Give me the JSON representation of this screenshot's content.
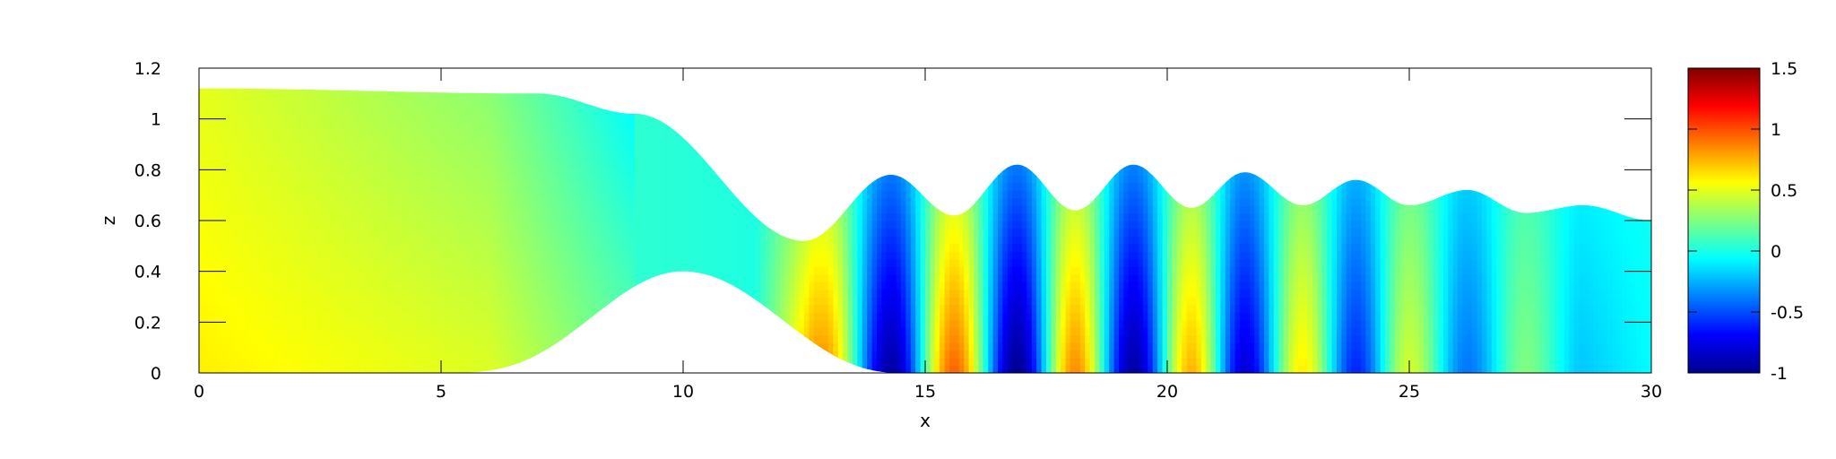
{
  "chart_data": {
    "type": "heatmap",
    "title": "",
    "xlabel": "x",
    "ylabel": "z",
    "xlim": [
      0,
      30
    ],
    "ylim": [
      0,
      1.2
    ],
    "xticks": [
      "0",
      "5",
      "10",
      "15",
      "20",
      "25",
      "30"
    ],
    "yticks": [
      "0",
      "0.2",
      "0.4",
      "0.6",
      "0.8",
      "1",
      "1.2"
    ],
    "colorbar": {
      "range": [
        -1,
        1.5
      ],
      "ticks": [
        "-1",
        "-0.5",
        "0",
        "0.5",
        "1",
        "1.5"
      ],
      "colormap": "jet",
      "placement": "right"
    },
    "bottom_topography": {
      "description_points": [
        [
          0,
          0
        ],
        [
          5,
          0
        ],
        [
          7,
          0.05
        ],
        [
          10,
          0.4
        ],
        [
          13,
          0.1
        ],
        [
          14.5,
          0
        ],
        [
          30,
          0
        ]
      ]
    },
    "free_surface": {
      "upstream_level": 1.12,
      "points": [
        [
          0,
          1.12
        ],
        [
          7,
          1.1
        ],
        [
          9,
          1.02
        ],
        [
          12.5,
          0.52
        ],
        [
          14.3,
          0.78
        ],
        [
          15.6,
          0.62
        ],
        [
          16.9,
          0.82
        ],
        [
          18.1,
          0.64
        ],
        [
          19.3,
          0.82
        ],
        [
          20.5,
          0.65
        ],
        [
          21.6,
          0.79
        ],
        [
          22.8,
          0.66
        ],
        [
          23.9,
          0.76
        ],
        [
          25,
          0.66
        ],
        [
          26.2,
          0.72
        ],
        [
          27.4,
          0.63
        ],
        [
          28.6,
          0.66
        ],
        [
          30,
          0.6
        ]
      ]
    },
    "wave_train": {
      "start_x": 12.5,
      "wavelength": 2.35,
      "peaks": [
        {
          "x": 12.9,
          "value": 0.85
        },
        {
          "x": 14.3,
          "value": -0.95
        },
        {
          "x": 15.6,
          "value": 0.95
        },
        {
          "x": 16.9,
          "value": -1.0
        },
        {
          "x": 18.1,
          "value": 0.85
        },
        {
          "x": 19.3,
          "value": -0.95
        },
        {
          "x": 20.5,
          "value": 0.75
        },
        {
          "x": 21.6,
          "value": -0.8
        },
        {
          "x": 22.8,
          "value": 0.6
        },
        {
          "x": 23.9,
          "value": -0.6
        },
        {
          "x": 25.0,
          "value": 0.45
        },
        {
          "x": 26.2,
          "value": -0.4
        },
        {
          "x": 27.4,
          "value": 0.25
        },
        {
          "x": 28.6,
          "value": -0.2
        }
      ]
    }
  }
}
